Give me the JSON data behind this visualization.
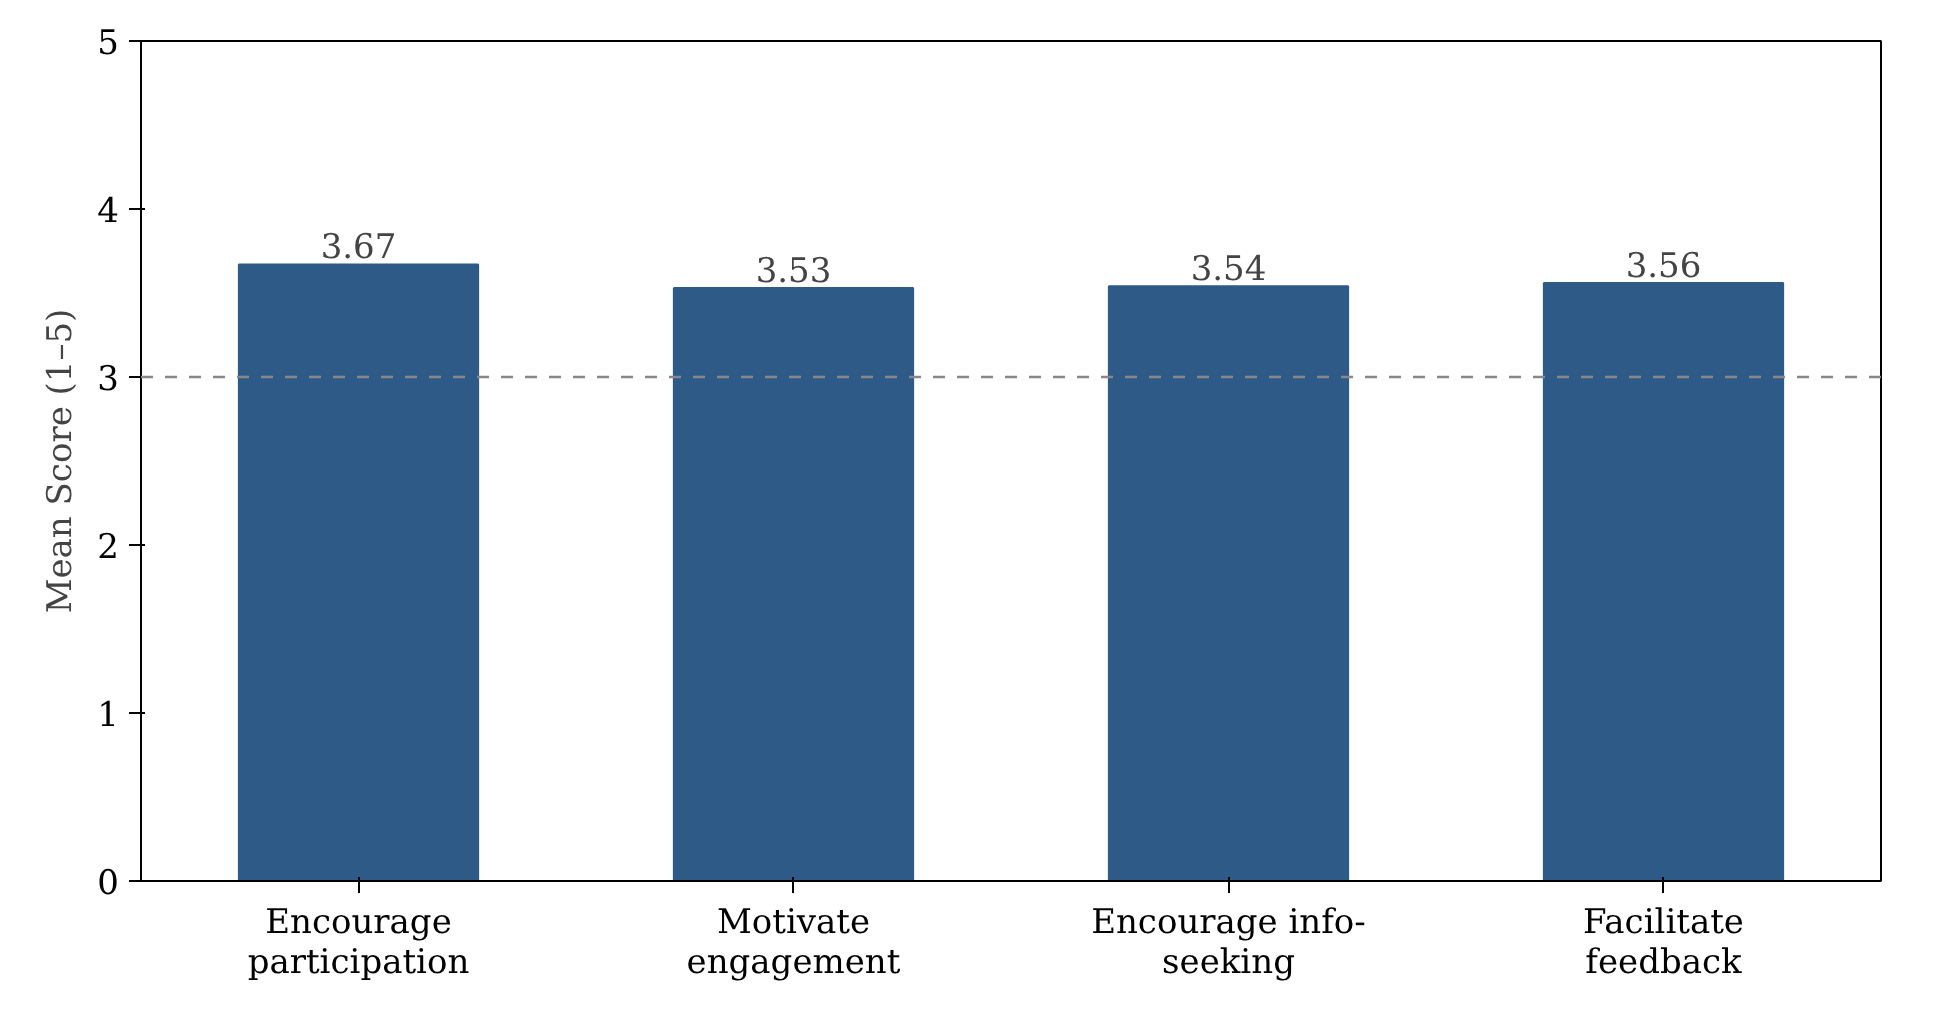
{
  "chart_data": {
    "type": "bar",
    "ylabel": "Mean Score (1–5)",
    "categories": [
      "Encourage\nparticipation",
      "Motivate\nengagement",
      "Encourage info-\nseeking",
      "Facilitate\nfeedback"
    ],
    "values": [
      3.67,
      3.53,
      3.54,
      3.56
    ],
    "color": "#2e5a87",
    "ylim": [
      0,
      5
    ],
    "yticks": [
      0,
      1,
      2,
      3,
      4,
      5
    ],
    "grid": false,
    "data_labels": true,
    "ref_lines": [
      {
        "axis": "y",
        "value": 3,
        "color": "#888888",
        "line_style": "dashed"
      }
    ]
  }
}
